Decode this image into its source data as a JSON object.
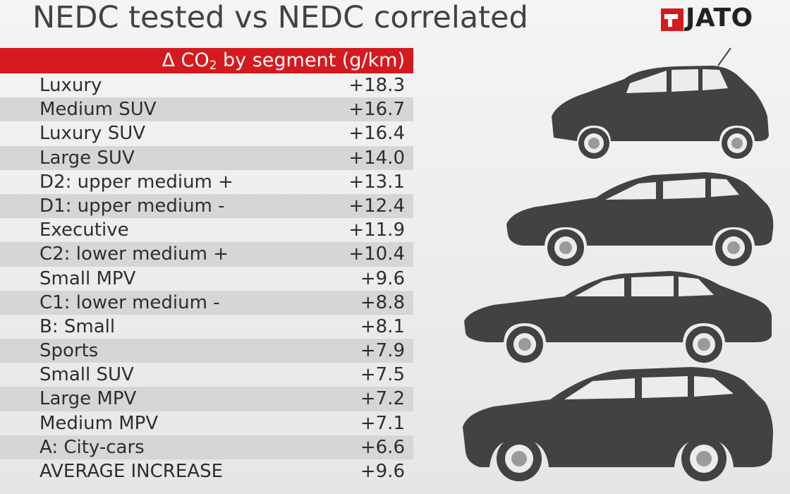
{
  "title": "NEDC tested vs NEDC correlated",
  "brand": "JATO",
  "colors": {
    "accent": "#d51a1f",
    "text": "#2e2e2e",
    "car": "#424242"
  },
  "chart_data": {
    "type": "table",
    "header": {
      "prefix": "Δ CO",
      "subscript": "2",
      "suffix": " by segment (g/km)"
    },
    "rows": [
      {
        "segment": "Luxury",
        "value": "+18.3"
      },
      {
        "segment": "Medium SUV",
        "value": "+16.7"
      },
      {
        "segment": "Luxury SUV",
        "value": "+16.4"
      },
      {
        "segment": "Large SUV",
        "value": "+14.0"
      },
      {
        "segment": "D2: upper medium +",
        "value": "+13.1"
      },
      {
        "segment": "D1: upper medium -",
        "value": "+12.4"
      },
      {
        "segment": "Executive",
        "value": "+11.9"
      },
      {
        "segment": "C2: lower medium +",
        "value": "+10.4"
      },
      {
        "segment": "Small MPV",
        "value": "+9.6"
      },
      {
        "segment": "C1: lower medium -",
        "value": "+8.8"
      },
      {
        "segment": "B: Small",
        "value": "+8.1"
      },
      {
        "segment": "Sports",
        "value": "+7.9"
      },
      {
        "segment": "Small SUV",
        "value": "+7.5"
      },
      {
        "segment": "Large MPV",
        "value": "+7.2"
      },
      {
        "segment": "Medium MPV",
        "value": "+7.1"
      },
      {
        "segment": "A: City-cars",
        "value": "+6.6"
      },
      {
        "segment": "AVERAGE INCREASE",
        "value": "+9.6"
      }
    ]
  },
  "illustrations": [
    "car-silhouette-icon",
    "car-silhouette-icon",
    "car-silhouette-icon",
    "car-silhouette-icon"
  ]
}
